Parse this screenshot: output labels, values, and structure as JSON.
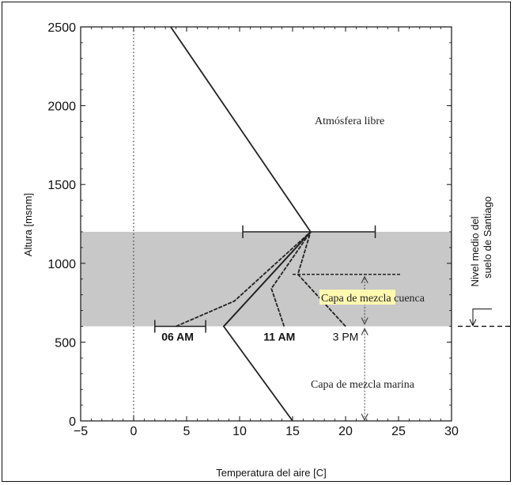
{
  "chart_data": {
    "type": "line",
    "xlabel": "Temperatura del aire [C]",
    "ylabel": "Altura [msnm]",
    "xlim": [
      -5,
      30
    ],
    "ylim": [
      0,
      2500
    ],
    "xticks": [
      -5,
      0,
      5,
      10,
      15,
      20,
      25,
      30
    ],
    "yticks": [
      0,
      500,
      1000,
      1500,
      2000,
      2500
    ],
    "shaded_band": {
      "y_from": 600,
      "y_to": 1200,
      "color": "#c8c8c8"
    },
    "zero_line": {
      "x": 0,
      "style": "dotted"
    },
    "series": [
      {
        "name": "06 AM",
        "x": [
          4.0,
          9.5,
          16.7
        ],
        "y": [
          600,
          760,
          1200
        ]
      },
      {
        "name": "11 AM",
        "x": [
          14.2,
          13.0,
          16.7
        ],
        "y": [
          600,
          840,
          1200
        ]
      },
      {
        "name": "3 PM",
        "x": [
          20.0,
          15.5,
          16.7
        ],
        "y": [
          600,
          930,
          1200
        ]
      },
      {
        "x": [
          3.5,
          16.7,
          8.5,
          15.0
        ],
        "y": [
          2500,
          1200,
          600,
          0
        ]
      },
      {
        "x": [
          8.5,
          16.7
        ],
        "y": [
          600,
          1200
        ]
      }
    ],
    "error_bars": [
      {
        "y": 1200,
        "x_from": 10.3,
        "x_to": 22.8
      },
      {
        "y": 600,
        "x_from": 2.0,
        "x_to": 6.8
      },
      {
        "y": 930,
        "x_from": 15.0,
        "x_to": 25.2,
        "style": "dashed"
      }
    ],
    "annotations": {
      "free_atmosphere": "Atmósfera libre",
      "basin_layer_highlight": "Capa de mezcla",
      "basin_layer_rest": " cuenca",
      "marine_layer": "Capa de mezcla marina",
      "ground_level_line1": "Nivel medio del",
      "ground_level_line2": "suelo de Santiago",
      "ground_level_y": 600
    }
  }
}
